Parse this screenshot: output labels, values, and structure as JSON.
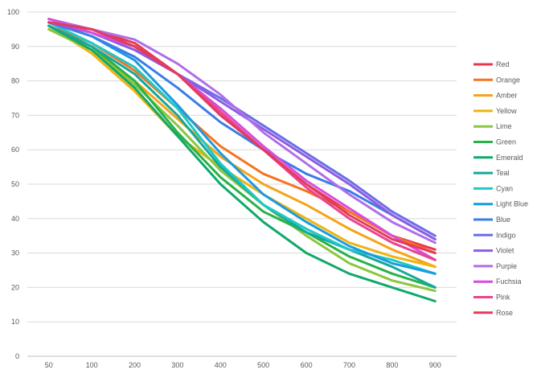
{
  "chart_data": {
    "type": "line",
    "title": "",
    "xlabel": "",
    "ylabel": "",
    "categories": [
      "50",
      "100",
      "200",
      "300",
      "400",
      "500",
      "600",
      "700",
      "800",
      "900"
    ],
    "ylim": [
      0,
      100
    ],
    "yticks": [
      "0",
      "10",
      "20",
      "30",
      "40",
      "50",
      "60",
      "70",
      "80",
      "90",
      "100"
    ],
    "grid": "horizontal",
    "legend_position": "right",
    "series": [
      {
        "name": "Red",
        "color": "#e8384f",
        "values": [
          97,
          95,
          91,
          82,
          71,
          60,
          50,
          42,
          35,
          31
        ]
      },
      {
        "name": "Orange",
        "color": "#f47421",
        "values": [
          96,
          91,
          83,
          72,
          61,
          53,
          48,
          42,
          35,
          30
        ]
      },
      {
        "name": "Amber",
        "color": "#f5a31a",
        "values": [
          95,
          89,
          80,
          69,
          58,
          50,
          44,
          37,
          31,
          26
        ]
      },
      {
        "name": "Yellow",
        "color": "#eeb410",
        "values": [
          96,
          88,
          77,
          64,
          55,
          47,
          40,
          33,
          29,
          26
        ]
      },
      {
        "name": "Lime",
        "color": "#8cc63f",
        "values": [
          95,
          89,
          79,
          67,
          54,
          44,
          35,
          27,
          22,
          19
        ]
      },
      {
        "name": "Green",
        "color": "#27b24a",
        "values": [
          96,
          90,
          80,
          65,
          52,
          42,
          36,
          29,
          24,
          20
        ]
      },
      {
        "name": "Emerald",
        "color": "#10a96a",
        "values": [
          96,
          89,
          78,
          64,
          50,
          39,
          30,
          24,
          20,
          16
        ]
      },
      {
        "name": "Teal",
        "color": "#14a89a",
        "values": [
          96,
          90,
          82,
          70,
          55,
          44,
          36,
          31,
          26,
          20
        ]
      },
      {
        "name": "Cyan",
        "color": "#1ec8c8",
        "values": [
          97,
          91,
          84,
          72,
          56,
          44,
          37,
          31,
          28,
          24
        ]
      },
      {
        "name": "Light Blue",
        "color": "#1a9be0",
        "values": [
          97,
          93,
          86,
          73,
          59,
          47,
          39,
          32,
          27,
          24
        ]
      },
      {
        "name": "Blue",
        "color": "#3b7de8",
        "values": [
          97,
          93,
          87,
          78,
          68,
          60,
          53,
          48,
          41,
          34
        ]
      },
      {
        "name": "Indigo",
        "color": "#6b6ee8",
        "values": [
          97,
          94,
          89,
          82,
          75,
          67,
          59,
          51,
          42,
          35
        ]
      },
      {
        "name": "Violet",
        "color": "#8e5ce0",
        "values": [
          97,
          94,
          89,
          82,
          74,
          66,
          58,
          50,
          41,
          34
        ]
      },
      {
        "name": "Purple",
        "color": "#b06ee8",
        "values": [
          98,
          95,
          92,
          85,
          76,
          65,
          56,
          47,
          39,
          33
        ]
      },
      {
        "name": "Fuchsia",
        "color": "#d74ddd",
        "values": [
          98,
          94,
          90,
          82,
          72,
          61,
          51,
          43,
          35,
          28
        ]
      },
      {
        "name": "Pink",
        "color": "#e8458f",
        "values": [
          97,
          95,
          90,
          82,
          71,
          60,
          49,
          40,
          33,
          28
        ]
      },
      {
        "name": "Rose",
        "color": "#e23b5c",
        "values": [
          97,
          95,
          90,
          82,
          70,
          60,
          50,
          41,
          34,
          30
        ]
      }
    ]
  }
}
